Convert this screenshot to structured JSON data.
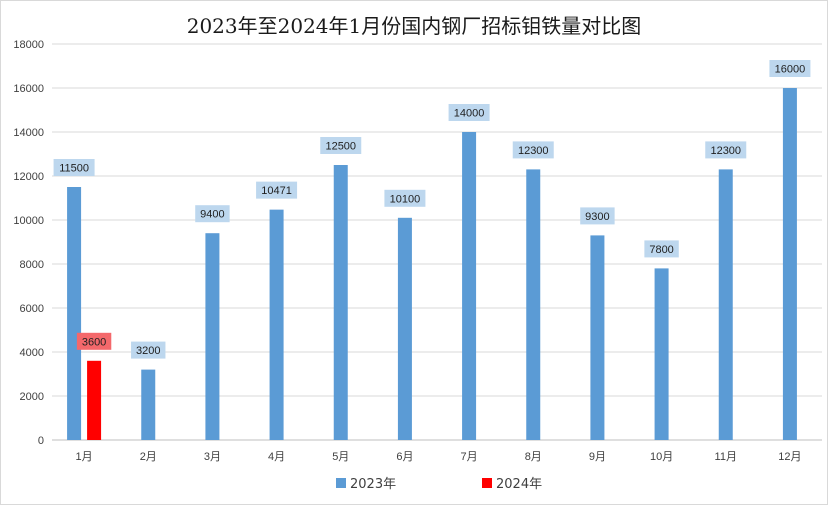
{
  "chart_data": {
    "type": "bar",
    "title": "2023年至2024年1月份国内钢厂招标钼铁量对比图",
    "categories": [
      "1月",
      "2月",
      "3月",
      "4月",
      "5月",
      "6月",
      "7月",
      "8月",
      "9月",
      "10月",
      "11月",
      "12月"
    ],
    "series": [
      {
        "name": "2023年",
        "color": "#5b9bd5",
        "values": [
          11500,
          3200,
          9400,
          10471,
          12500,
          10100,
          14000,
          12300,
          9300,
          7800,
          12300,
          16000
        ]
      },
      {
        "name": "2024年",
        "color": "#ff0000",
        "values": [
          3600,
          null,
          null,
          null,
          null,
          null,
          null,
          null,
          null,
          null,
          null,
          null
        ]
      }
    ],
    "ylim": [
      0,
      18000
    ],
    "yticks": [
      0,
      2000,
      4000,
      6000,
      8000,
      10000,
      12000,
      14000,
      16000,
      18000
    ],
    "grid": true,
    "legend": "bottom",
    "label_colors": {
      "2023年": "#bdd7ee",
      "2024年": "#f4686b"
    }
  }
}
